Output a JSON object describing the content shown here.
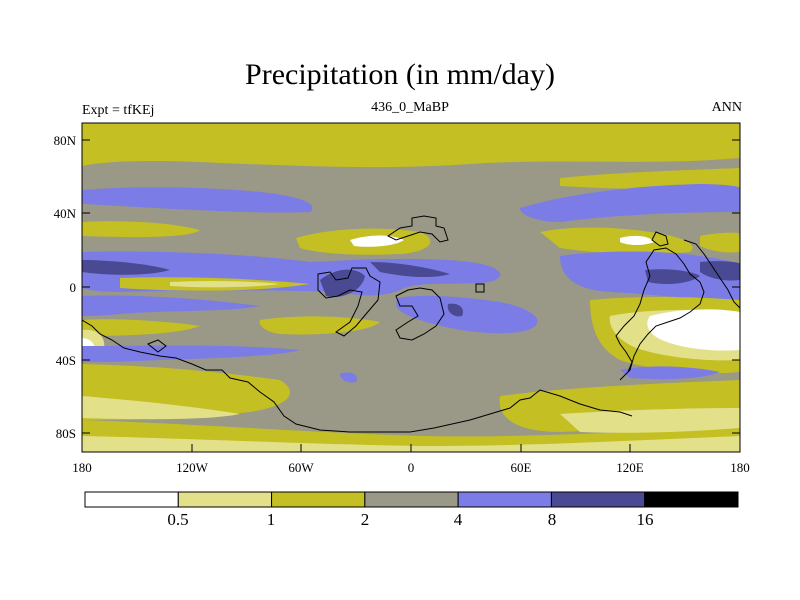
{
  "title": "Precipitation (in mm/day)",
  "left_label": "Expt = tfKEj",
  "center_label": "436_0_MaBP",
  "right_label": "ANN",
  "lat_labels": [
    "80N",
    "40N",
    "0",
    "40S",
    "80S"
  ],
  "lon_labels": [
    "180",
    "120W",
    "60W",
    "0",
    "60E",
    "120E",
    "180"
  ],
  "colorbar": {
    "colors": [
      "#ffffff",
      "#e3e08a",
      "#c4bf23",
      "#9a9886",
      "#7c7ce6",
      "#4a4a94",
      "#000000"
    ],
    "labels": [
      "0.5",
      "1",
      "2",
      "4",
      "8",
      "16"
    ]
  },
  "colors": {
    "light": "#e3e08a",
    "olive": "#c4bf23",
    "gray": "#9a9886",
    "blue": "#7c7ce6",
    "navy": "#4a4a94",
    "white": "#ffffff"
  }
}
